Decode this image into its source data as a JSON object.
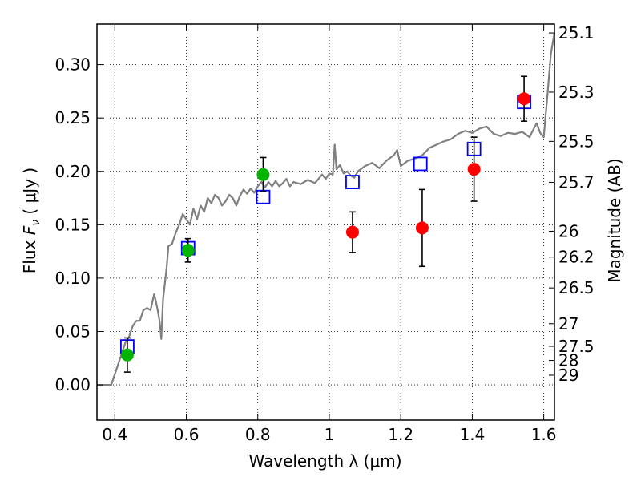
{
  "chart_data": {
    "type": "scatter",
    "xlabel": "Wavelength  λ (μm)",
    "ylabel": "Flux  F_ν  ( μJy )",
    "ylabel_right": "Magnitude (AB)",
    "xlim": [
      0.35,
      1.63
    ],
    "ylim": [
      -0.033,
      0.338
    ],
    "grid": true,
    "x_ticks": [
      0.4,
      0.6,
      0.8,
      1.0,
      1.2,
      1.4,
      1.6
    ],
    "x_tick_labels": [
      "0.4",
      "0.6",
      "0.8",
      "1",
      "1.2",
      "1.4",
      "1.6"
    ],
    "y_ticks": [
      0.0,
      0.05,
      0.1,
      0.15,
      0.2,
      0.25,
      0.3
    ],
    "y_tick_labels": [
      "0.00",
      "0.05",
      "0.10",
      "0.15",
      "0.20",
      "0.25",
      "0.30"
    ],
    "right_ticks": [
      {
        "label": "25.1",
        "flux": 0.3297
      },
      {
        "label": "25.3",
        "flux": 0.2742
      },
      {
        "label": "25.5",
        "flux": 0.2281
      },
      {
        "label": "25.7",
        "flux": 0.1897
      },
      {
        "label": "26",
        "flux": 0.1439
      },
      {
        "label": "26.2",
        "flux": 0.1197
      },
      {
        "label": "26.5",
        "flux": 0.0908
      },
      {
        "label": "27",
        "flux": 0.0573
      },
      {
        "label": "27.5",
        "flux": 0.0361
      },
      {
        "label": "28",
        "flux": 0.0229
      },
      {
        "label": "29",
        "flux": 0.0091
      }
    ],
    "model_spectrum": {
      "color": "#808080",
      "points": [
        [
          0.35,
          0.0
        ],
        [
          0.38,
          0.0
        ],
        [
          0.39,
          0.0
        ],
        [
          0.41,
          0.02
        ],
        [
          0.42,
          0.03
        ],
        [
          0.43,
          0.04
        ],
        [
          0.44,
          0.045
        ],
        [
          0.45,
          0.055
        ],
        [
          0.46,
          0.06
        ],
        [
          0.47,
          0.06
        ],
        [
          0.48,
          0.07
        ],
        [
          0.49,
          0.072
        ],
        [
          0.5,
          0.07
        ],
        [
          0.51,
          0.085
        ],
        [
          0.515,
          0.078
        ],
        [
          0.52,
          0.07
        ],
        [
          0.525,
          0.06
        ],
        [
          0.53,
          0.043
        ],
        [
          0.535,
          0.08
        ],
        [
          0.545,
          0.11
        ],
        [
          0.55,
          0.13
        ],
        [
          0.56,
          0.132
        ],
        [
          0.57,
          0.142
        ],
        [
          0.58,
          0.15
        ],
        [
          0.59,
          0.16
        ],
        [
          0.6,
          0.155
        ],
        [
          0.61,
          0.15
        ],
        [
          0.62,
          0.165
        ],
        [
          0.63,
          0.155
        ],
        [
          0.64,
          0.168
        ],
        [
          0.65,
          0.162
        ],
        [
          0.66,
          0.175
        ],
        [
          0.67,
          0.17
        ],
        [
          0.68,
          0.178
        ],
        [
          0.69,
          0.175
        ],
        [
          0.7,
          0.168
        ],
        [
          0.71,
          0.172
        ],
        [
          0.72,
          0.178
        ],
        [
          0.73,
          0.175
        ],
        [
          0.74,
          0.168
        ],
        [
          0.75,
          0.177
        ],
        [
          0.76,
          0.183
        ],
        [
          0.77,
          0.179
        ],
        [
          0.78,
          0.184
        ],
        [
          0.79,
          0.18
        ],
        [
          0.8,
          0.186
        ],
        [
          0.81,
          0.19
        ],
        [
          0.82,
          0.185
        ],
        [
          0.83,
          0.19
        ],
        [
          0.84,
          0.186
        ],
        [
          0.85,
          0.191
        ],
        [
          0.86,
          0.186
        ],
        [
          0.87,
          0.189
        ],
        [
          0.88,
          0.193
        ],
        [
          0.89,
          0.186
        ],
        [
          0.9,
          0.19
        ],
        [
          0.92,
          0.188
        ],
        [
          0.94,
          0.192
        ],
        [
          0.96,
          0.189
        ],
        [
          0.98,
          0.197
        ],
        [
          0.99,
          0.193
        ],
        [
          1.0,
          0.198
        ],
        [
          1.01,
          0.197
        ],
        [
          1.015,
          0.225
        ],
        [
          1.02,
          0.202
        ],
        [
          1.03,
          0.206
        ],
        [
          1.04,
          0.198
        ],
        [
          1.05,
          0.2
        ],
        [
          1.06,
          0.196
        ],
        [
          1.07,
          0.194
        ],
        [
          1.08,
          0.2
        ],
        [
          1.1,
          0.205
        ],
        [
          1.12,
          0.208
        ],
        [
          1.14,
          0.203
        ],
        [
          1.16,
          0.21
        ],
        [
          1.18,
          0.215
        ],
        [
          1.19,
          0.22
        ],
        [
          1.2,
          0.205
        ],
        [
          1.22,
          0.21
        ],
        [
          1.24,
          0.212
        ],
        [
          1.26,
          0.215
        ],
        [
          1.28,
          0.222
        ],
        [
          1.3,
          0.225
        ],
        [
          1.32,
          0.228
        ],
        [
          1.34,
          0.23
        ],
        [
          1.36,
          0.235
        ],
        [
          1.38,
          0.238
        ],
        [
          1.4,
          0.236
        ],
        [
          1.42,
          0.24
        ],
        [
          1.44,
          0.242
        ],
        [
          1.46,
          0.235
        ],
        [
          1.48,
          0.233
        ],
        [
          1.5,
          0.236
        ],
        [
          1.52,
          0.235
        ],
        [
          1.54,
          0.237
        ],
        [
          1.56,
          0.232
        ],
        [
          1.58,
          0.245
        ],
        [
          1.59,
          0.236
        ],
        [
          1.6,
          0.232
        ],
        [
          1.61,
          0.27
        ],
        [
          1.62,
          0.31
        ],
        [
          1.63,
          0.33
        ]
      ]
    },
    "series": [
      {
        "marker": "open-square",
        "color": "#0000ff",
        "points": [
          {
            "x": 0.435,
            "y": 0.036
          },
          {
            "x": 0.605,
            "y": 0.128
          },
          {
            "x": 0.815,
            "y": 0.176
          },
          {
            "x": 1.065,
            "y": 0.19
          },
          {
            "x": 1.255,
            "y": 0.207
          },
          {
            "x": 1.405,
            "y": 0.221
          },
          {
            "x": 1.545,
            "y": 0.265
          }
        ]
      },
      {
        "marker": "filled-circle",
        "color": "#00b400",
        "points": [
          {
            "x": 0.435,
            "y": 0.028,
            "err": 0.016
          },
          {
            "x": 0.605,
            "y": 0.126,
            "err": 0.011
          },
          {
            "x": 0.815,
            "y": 0.197,
            "err": 0.016
          }
        ]
      },
      {
        "marker": "filled-circle",
        "color": "#ff0000",
        "points": [
          {
            "x": 1.065,
            "y": 0.143,
            "err": 0.019
          },
          {
            "x": 1.26,
            "y": 0.147,
            "err": 0.036
          },
          {
            "x": 1.405,
            "y": 0.202,
            "err": 0.03
          },
          {
            "x": 1.545,
            "y": 0.268,
            "err": 0.021
          }
        ]
      }
    ]
  }
}
